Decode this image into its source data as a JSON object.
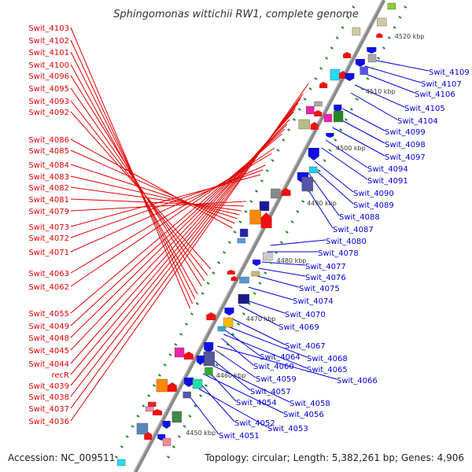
{
  "title": "Sphingomonas wittichii RW1, complete genome",
  "footer": {
    "accession": "Accession: NC_009511",
    "stats": "Topology: circular; Length: 5,382,261 bp; Genes: 4,906"
  },
  "colors": {
    "left_label": "#e00000",
    "right_label": "#0000dd",
    "axis": "#8a8a8a",
    "tick": "#2e8b2e"
  },
  "kbp_ticks": [
    "4450 kbp",
    "4460 kbp",
    "4470 kbp",
    "4480 kbp",
    "4490 kbp",
    "4500 kbp",
    "4510 kbp",
    "4520 kbp"
  ],
  "left_labels": [
    "Swit_4103",
    "Swit_4102",
    "Swit_4101",
    "Swit_4100",
    "Swit_4096",
    "Swit_4095",
    "Swit_4093",
    "Swit_4092",
    "Swit_4086",
    "Swit_4085",
    "Swit_4084",
    "Swit_4083",
    "Swit_4082",
    "Swit_4081",
    "Swit_4079",
    "Swit_4073",
    "Swit_4072",
    "Swit_4071",
    "Swit_4063",
    "Swit_4062",
    "Swit_4055",
    "Swit_4049",
    "Swit_4048",
    "Swit_4045",
    "Swit_4044",
    "recR",
    "Swit_4039",
    "Swit_4038",
    "Swit_4037",
    "Swit_4036"
  ],
  "right_labels": [
    "Swit_4109",
    "Swit_4107",
    "Swit_4106",
    "Swit_4105",
    "Swit_4104",
    "Swit_4099",
    "Swit_4098",
    "Swit_4097",
    "Swit_4094",
    "Swit_4091",
    "Swit_4090",
    "Swit_4089",
    "Swit_4088",
    "Swit_4087",
    "Swit_4080",
    "Swit_4078",
    "Swit_4077",
    "Swit_4076",
    "Swit_4075",
    "Swit_4074",
    "Swit_4070",
    "Swit_4069",
    "Swit_4067",
    "Swit_4068",
    "Swit_4064",
    "Swit_4065",
    "Swit_4060",
    "Swit_4066",
    "Swit_4059",
    "Swit_4057",
    "Swit_4058",
    "Swit_4054",
    "Swit_4056",
    "Swit_4052",
    "Swit_4053",
    "Swit_4051"
  ]
}
